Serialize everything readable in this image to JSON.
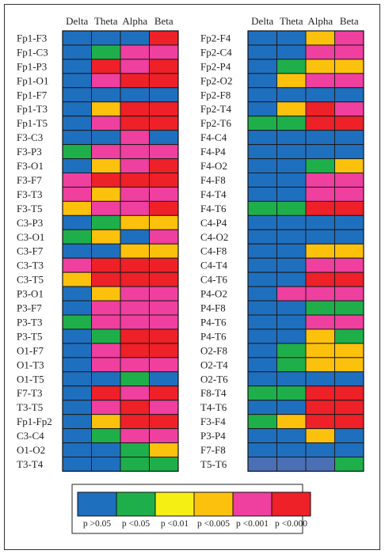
{
  "chart_data": {
    "type": "heatmap",
    "columns": [
      "Delta",
      "Theta",
      "Alpha",
      "Beta"
    ],
    "palette": {
      "0": "#1f6fbf",
      "1": "#1faf4a",
      "2": "#f5ef14",
      "3": "#fcc10c",
      "4": "#ef3f9f",
      "5": "#ee2028",
      "6": "#4a6fb5"
    },
    "legend": [
      {
        "label": "p >0.05",
        "level": 0
      },
      {
        "label": "p <0.05",
        "level": 1
      },
      {
        "label": "p <0.01",
        "level": 2
      },
      {
        "label": "p <0.005",
        "level": 3
      },
      {
        "label": "p <0.001",
        "level": 4
      },
      {
        "label": "p <0.000",
        "level": 5
      }
    ],
    "left_table": {
      "rows": [
        {
          "label": "Fp1-F3",
          "values": [
            0,
            0,
            0,
            5
          ]
        },
        {
          "label": "Fp1-C3",
          "values": [
            0,
            1,
            4,
            4
          ]
        },
        {
          "label": "Fp1-P3",
          "values": [
            0,
            5,
            4,
            5
          ]
        },
        {
          "label": "Fp1-O1",
          "values": [
            0,
            4,
            5,
            5
          ]
        },
        {
          "label": "Fp1-F7",
          "values": [
            0,
            0,
            0,
            0
          ]
        },
        {
          "label": "Fp1-T3",
          "values": [
            0,
            3,
            5,
            5
          ]
        },
        {
          "label": "Fp1-T5",
          "values": [
            0,
            4,
            5,
            5
          ]
        },
        {
          "label": "F3-C3",
          "values": [
            0,
            0,
            4,
            0
          ]
        },
        {
          "label": "F3-P3",
          "values": [
            1,
            4,
            4,
            4
          ]
        },
        {
          "label": "F3-O1",
          "values": [
            0,
            3,
            4,
            5
          ]
        },
        {
          "label": "F3-F7",
          "values": [
            4,
            5,
            5,
            5
          ]
        },
        {
          "label": "F3-T3",
          "values": [
            4,
            3,
            4,
            4
          ]
        },
        {
          "label": "F3-T5",
          "values": [
            3,
            4,
            4,
            5
          ]
        },
        {
          "label": "C3-P3",
          "values": [
            0,
            1,
            3,
            3
          ]
        },
        {
          "label": "C3-O1",
          "values": [
            1,
            3,
            0,
            4
          ]
        },
        {
          "label": "C3-F7",
          "values": [
            0,
            0,
            3,
            3
          ]
        },
        {
          "label": "C3-T3",
          "values": [
            4,
            5,
            5,
            5
          ]
        },
        {
          "label": "C3-T5",
          "values": [
            3,
            5,
            5,
            5
          ]
        },
        {
          "label": "P3-O1",
          "values": [
            0,
            3,
            4,
            4
          ]
        },
        {
          "label": "P3-F7",
          "values": [
            0,
            4,
            4,
            4
          ]
        },
        {
          "label": "P3-T3",
          "values": [
            1,
            4,
            4,
            4
          ]
        },
        {
          "label": "P3-T5",
          "values": [
            0,
            1,
            5,
            5
          ]
        },
        {
          "label": "O1-F7",
          "values": [
            0,
            4,
            5,
            5
          ]
        },
        {
          "label": "O1-T3",
          "values": [
            0,
            4,
            4,
            4
          ]
        },
        {
          "label": "O1-T5",
          "values": [
            0,
            0,
            1,
            0
          ]
        },
        {
          "label": "F7-T3",
          "values": [
            0,
            5,
            4,
            5
          ]
        },
        {
          "label": "T3-T5",
          "values": [
            0,
            4,
            5,
            4
          ]
        },
        {
          "label": "Fp1-Fp2",
          "values": [
            0,
            3,
            5,
            5
          ]
        },
        {
          "label": "C3-C4",
          "values": [
            0,
            1,
            4,
            4
          ]
        },
        {
          "label": "O1-O2",
          "values": [
            0,
            0,
            1,
            3
          ]
        },
        {
          "label": "T3-T4",
          "values": [
            0,
            0,
            1,
            1
          ]
        }
      ]
    },
    "right_table": {
      "rows": [
        {
          "label": "Fp2-F4",
          "values": [
            0,
            0,
            3,
            4
          ]
        },
        {
          "label": "Fp2-C4",
          "values": [
            0,
            0,
            4,
            4
          ]
        },
        {
          "label": "Fp2-P4",
          "values": [
            0,
            1,
            3,
            3
          ]
        },
        {
          "label": "Fp2-O2",
          "values": [
            0,
            3,
            4,
            4
          ]
        },
        {
          "label": "Fp2-F8",
          "values": [
            0,
            0,
            0,
            0
          ]
        },
        {
          "label": "Fp2-T4",
          "values": [
            0,
            3,
            5,
            4
          ]
        },
        {
          "label": "Fp2-T6",
          "values": [
            1,
            1,
            5,
            5
          ]
        },
        {
          "label": "F4-C4",
          "values": [
            0,
            0,
            0,
            0
          ]
        },
        {
          "label": "F4-P4",
          "values": [
            0,
            0,
            0,
            0
          ]
        },
        {
          "label": "F4-O2",
          "values": [
            0,
            0,
            1,
            3
          ]
        },
        {
          "label": "F4-F8",
          "values": [
            0,
            0,
            4,
            4
          ]
        },
        {
          "label": "F4-T4",
          "values": [
            0,
            0,
            4,
            4
          ]
        },
        {
          "label": "F4-T6",
          "values": [
            1,
            1,
            5,
            5
          ]
        },
        {
          "label": "C4-P4",
          "values": [
            0,
            0,
            0,
            0
          ]
        },
        {
          "label": "C4-O2",
          "values": [
            0,
            0,
            0,
            0
          ]
        },
        {
          "label": "C4-F8",
          "values": [
            0,
            0,
            3,
            3
          ]
        },
        {
          "label": "C4-T4",
          "values": [
            0,
            0,
            4,
            4
          ]
        },
        {
          "label": "C4-T6",
          "values": [
            0,
            0,
            5,
            5
          ]
        },
        {
          "label": "P4-O2",
          "values": [
            0,
            4,
            4,
            4
          ]
        },
        {
          "label": "P4-F8",
          "values": [
            0,
            0,
            1,
            1
          ]
        },
        {
          "label": "P4-T6",
          "values": [
            0,
            0,
            4,
            4
          ]
        },
        {
          "label": "P4-T6",
          "values": [
            0,
            0,
            3,
            1
          ]
        },
        {
          "label": "O2-F8",
          "values": [
            0,
            1,
            3,
            3
          ]
        },
        {
          "label": "O2-T4",
          "values": [
            0,
            1,
            3,
            3
          ]
        },
        {
          "label": "O2-T6",
          "values": [
            0,
            0,
            0,
            0
          ]
        },
        {
          "label": "F8-T4",
          "values": [
            1,
            1,
            5,
            5
          ]
        },
        {
          "label": "T4-T6",
          "values": [
            0,
            0,
            5,
            5
          ]
        },
        {
          "label": "F3-F4",
          "values": [
            1,
            3,
            5,
            5
          ]
        },
        {
          "label": "P3-P4",
          "values": [
            0,
            0,
            3,
            0
          ]
        },
        {
          "label": "F7-F8",
          "values": [
            0,
            0,
            0,
            0
          ]
        },
        {
          "label": "T5-T6",
          "values": [
            6,
            6,
            6,
            1
          ]
        }
      ]
    }
  }
}
